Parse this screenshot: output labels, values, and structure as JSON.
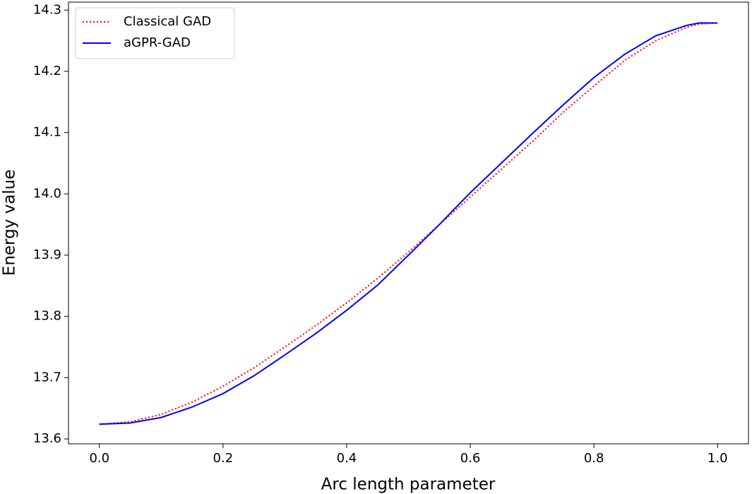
{
  "chart_data": {
    "type": "line",
    "xlabel": "Arc length parameter",
    "ylabel": "Energy value",
    "x": [
      0,
      0.05,
      0.1,
      0.15,
      0.2,
      0.25,
      0.3,
      0.35,
      0.4,
      0.45,
      0.5,
      0.55,
      0.6,
      0.65,
      0.7,
      0.75,
      0.8,
      0.85,
      0.9,
      0.95,
      0.97,
      1.0
    ],
    "series": [
      {
        "name": "Classical GAD",
        "color": "#ff0000",
        "dash": "dotted",
        "values": [
          13.624,
          13.628,
          13.64,
          13.66,
          13.686,
          13.716,
          13.75,
          13.785,
          13.822,
          13.862,
          13.905,
          13.95,
          13.995,
          14.04,
          14.085,
          14.133,
          14.176,
          14.218,
          14.25,
          14.272,
          14.277,
          14.279
        ]
      },
      {
        "name": "aGPR-GAD",
        "color": "#0000ff",
        "dash": "solid",
        "values": [
          13.624,
          13.626,
          13.635,
          13.652,
          13.674,
          13.703,
          13.737,
          13.772,
          13.81,
          13.851,
          13.9,
          13.95,
          14.002,
          14.05,
          14.098,
          14.145,
          14.19,
          14.228,
          14.258,
          14.275,
          14.279,
          14.279
        ]
      }
    ],
    "xlim": [
      -0.05,
      1.05
    ],
    "xticks": [
      {
        "value": 0,
        "label": "0.0"
      },
      0.2,
      0.4,
      0.6,
      0.8,
      {
        "value": 1,
        "label": "1.0"
      }
    ],
    "ylim": [
      13.592,
      14.313
    ],
    "yticks": [
      13.6,
      13.7,
      13.8,
      13.9,
      {
        "value": 14,
        "label": "14.0"
      },
      14.1,
      14.2,
      14.3
    ],
    "legend": "upper left"
  }
}
